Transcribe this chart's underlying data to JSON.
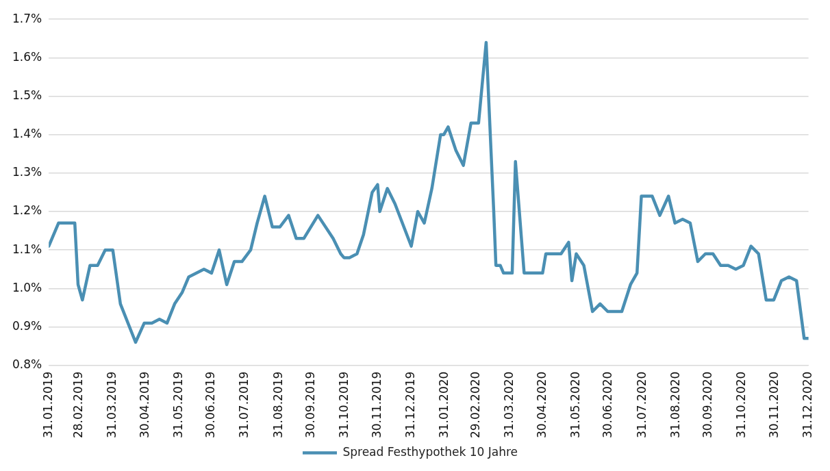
{
  "chart_data": {
    "type": "line",
    "x": [
      "2019-01-31",
      "2019-02-09",
      "2019-02-24",
      "2019-02-27",
      "2019-03-03",
      "2019-03-10",
      "2019-03-17",
      "2019-03-24",
      "2019-03-31",
      "2019-04-07",
      "2019-04-21",
      "2019-04-29",
      "2019-05-06",
      "2019-05-13",
      "2019-05-20",
      "2019-05-27",
      "2019-06-03",
      "2019-06-09",
      "2019-06-23",
      "2019-06-30",
      "2019-07-07",
      "2019-07-14",
      "2019-07-21",
      "2019-07-28",
      "2019-08-05",
      "2019-08-11",
      "2019-08-18",
      "2019-08-25",
      "2019-09-01",
      "2019-09-09",
      "2019-09-16",
      "2019-09-23",
      "2019-10-06",
      "2019-10-20",
      "2019-10-27",
      "2019-10-30",
      "2019-11-04",
      "2019-11-11",
      "2019-11-17",
      "2019-11-25",
      "2019-11-30",
      "2019-12-02",
      "2019-12-09",
      "2019-12-16",
      "2019-12-31",
      "2020-01-06",
      "2020-01-12",
      "2020-01-19",
      "2020-01-27",
      "2020-01-30",
      "2020-02-03",
      "2020-02-10",
      "2020-02-17",
      "2020-02-24",
      "2020-03-02",
      "2020-03-09",
      "2020-03-16",
      "2020-03-18",
      "2020-03-22",
      "2020-03-25",
      "2020-04-02",
      "2020-04-05",
      "2020-04-13",
      "2020-04-30",
      "2020-05-03",
      "2020-05-17",
      "2020-05-24",
      "2020-05-27",
      "2020-05-31",
      "2020-06-07",
      "2020-06-15",
      "2020-06-22",
      "2020-06-29",
      "2020-07-12",
      "2020-07-20",
      "2020-07-26",
      "2020-07-30",
      "2020-08-09",
      "2020-08-16",
      "2020-08-24",
      "2020-08-30",
      "2020-09-06",
      "2020-09-13",
      "2020-09-20",
      "2020-09-27",
      "2020-10-04",
      "2020-10-11",
      "2020-10-18",
      "2020-10-25",
      "2020-11-01",
      "2020-11-08",
      "2020-11-15",
      "2020-11-22",
      "2020-11-29",
      "2020-12-06",
      "2020-12-13",
      "2020-12-20",
      "2020-12-27",
      "2020-12-31"
    ],
    "series": [
      {
        "name": "Spread Festhypothek 10 Jahre",
        "color": "#4a8fb3",
        "values": [
          1.11,
          1.17,
          1.17,
          1.01,
          0.97,
          1.06,
          1.06,
          1.1,
          1.1,
          0.96,
          0.86,
          0.91,
          0.91,
          0.92,
          0.91,
          0.96,
          0.99,
          1.03,
          1.05,
          1.04,
          1.1,
          1.01,
          1.07,
          1.07,
          1.1,
          1.17,
          1.24,
          1.16,
          1.16,
          1.19,
          1.13,
          1.13,
          1.19,
          1.13,
          1.09,
          1.08,
          1.08,
          1.09,
          1.14,
          1.25,
          1.27,
          1.2,
          1.26,
          1.22,
          1.11,
          1.2,
          1.17,
          1.26,
          1.4,
          1.4,
          1.42,
          1.36,
          1.32,
          1.43,
          1.43,
          1.64,
          1.2,
          1.06,
          1.06,
          1.04,
          1.04,
          1.33,
          1.04,
          1.04,
          1.09,
          1.09,
          1.12,
          1.02,
          1.09,
          1.06,
          0.94,
          0.96,
          0.94,
          0.94,
          1.01,
          1.04,
          1.24,
          1.24,
          1.19,
          1.24,
          1.17,
          1.18,
          1.17,
          1.07,
          1.09,
          1.09,
          1.06,
          1.06,
          1.05,
          1.06,
          1.11,
          1.09,
          0.97,
          0.97,
          1.02,
          1.03,
          1.02,
          0.87,
          0.87
        ]
      }
    ],
    "xlim": [
      "2019-01-31",
      "2020-12-31"
    ],
    "xticks": [
      {
        "value": "2019-01-31",
        "label": "31.01.2019"
      },
      {
        "value": "2019-02-28",
        "label": "28.02.2019"
      },
      {
        "value": "2019-03-31",
        "label": "31.03.2019"
      },
      {
        "value": "2019-04-30",
        "label": "30.04.2019"
      },
      {
        "value": "2019-05-31",
        "label": "31.05.2019"
      },
      {
        "value": "2019-06-30",
        "label": "30.06.2019"
      },
      {
        "value": "2019-07-31",
        "label": "31.07.2019"
      },
      {
        "value": "2019-08-31",
        "label": "31.08.2019"
      },
      {
        "value": "2019-09-30",
        "label": "30.09.2019"
      },
      {
        "value": "2019-10-31",
        "label": "31.10.2019"
      },
      {
        "value": "2019-11-30",
        "label": "30.11.2019"
      },
      {
        "value": "2019-12-31",
        "label": "31.12.2019"
      },
      {
        "value": "2020-01-31",
        "label": "31.01.2020"
      },
      {
        "value": "2020-02-29",
        "label": "29.02.2020"
      },
      {
        "value": "2020-03-31",
        "label": "31.03.2020"
      },
      {
        "value": "2020-04-30",
        "label": "30.04.2020"
      },
      {
        "value": "2020-05-31",
        "label": "31.05.2020"
      },
      {
        "value": "2020-06-30",
        "label": "30.06.2020"
      },
      {
        "value": "2020-07-31",
        "label": "31.07.2020"
      },
      {
        "value": "2020-08-31",
        "label": "31.08.2020"
      },
      {
        "value": "2020-09-30",
        "label": "30.09.2020"
      },
      {
        "value": "2020-10-31",
        "label": "31.10.2020"
      },
      {
        "value": "2020-11-30",
        "label": "30.11.2020"
      },
      {
        "value": "2020-12-31",
        "label": "31.12.2020"
      }
    ],
    "ylim": [
      0.8,
      1.7
    ],
    "yticks": [
      {
        "value": 0.8,
        "label": "0.8%"
      },
      {
        "value": 0.9,
        "label": "0.9%"
      },
      {
        "value": 1.0,
        "label": "1.0%"
      },
      {
        "value": 1.1,
        "label": "1.1%"
      },
      {
        "value": 1.2,
        "label": "1.2%"
      },
      {
        "value": 1.3,
        "label": "1.3%"
      },
      {
        "value": 1.4,
        "label": "1.4%"
      },
      {
        "value": 1.5,
        "label": "1.5%"
      },
      {
        "value": 1.6,
        "label": "1.6%"
      },
      {
        "value": 1.7,
        "label": "1.7%"
      }
    ],
    "grid": "y",
    "legend": "bottom",
    "marker": "none",
    "line_style": "solid"
  }
}
